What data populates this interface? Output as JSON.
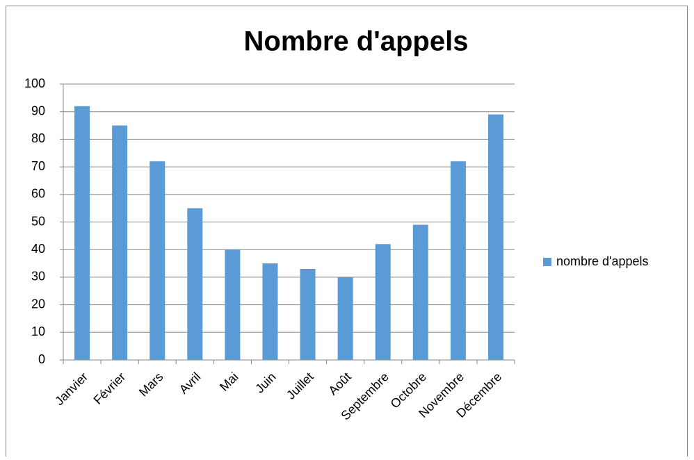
{
  "chart_data": {
    "type": "bar",
    "title": "Nombre d'appels",
    "categories": [
      "Janvier",
      "Février",
      "Mars",
      "Avril",
      "Mai",
      "Juin",
      "Juillet",
      "Août",
      "Septembre",
      "Octobre",
      "Novembre",
      "Décembre"
    ],
    "series": [
      {
        "name": "nombre d'appels",
        "color": "#5b9bd5",
        "values": [
          92,
          85,
          72,
          55,
          40,
          35,
          33,
          30,
          42,
          49,
          72,
          89
        ]
      }
    ],
    "ylim": [
      0,
      100
    ],
    "yticks": [
      0,
      10,
      20,
      30,
      40,
      50,
      60,
      70,
      80,
      90,
      100
    ],
    "grid": true,
    "legend": "right"
  }
}
